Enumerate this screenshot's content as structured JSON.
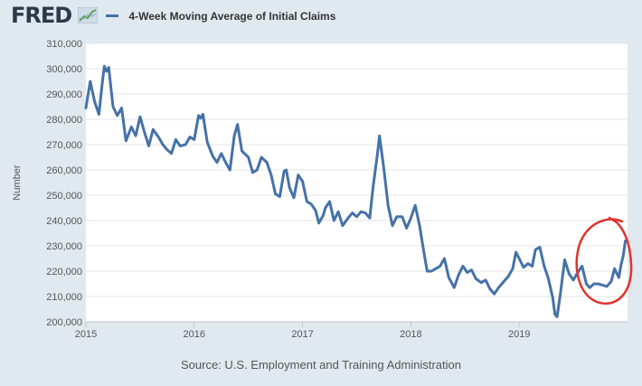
{
  "app": {
    "brand": "FRED",
    "logo_icon": "trend-graph-icon"
  },
  "legend": {
    "label": "4-Week Moving Average of Initial Claims",
    "color": "#4572a7"
  },
  "source": "Source: U.S. Employment and Training Administration",
  "annotation": {
    "type": "hand-drawn circle",
    "color": "#e0342c"
  },
  "chart_data": {
    "type": "line",
    "title": "",
    "xlabel": "",
    "ylabel": "Number",
    "xlim": [
      2015.0,
      2020.0
    ],
    "ylim": [
      200000,
      310000
    ],
    "grid": true,
    "legend_position": "top",
    "x_ticks": [
      {
        "value": 2015,
        "label": "2015"
      },
      {
        "value": 2016,
        "label": "2016"
      },
      {
        "value": 2017,
        "label": "2017"
      },
      {
        "value": 2018,
        "label": "2018"
      },
      {
        "value": 2019,
        "label": "2019"
      }
    ],
    "y_ticks": [
      {
        "value": 200000,
        "label": "200,000"
      },
      {
        "value": 210000,
        "label": "210,000"
      },
      {
        "value": 220000,
        "label": "220,000"
      },
      {
        "value": 230000,
        "label": "230,000"
      },
      {
        "value": 240000,
        "label": "240,000"
      },
      {
        "value": 250000,
        "label": "250,000"
      },
      {
        "value": 260000,
        "label": "260,000"
      },
      {
        "value": 270000,
        "label": "270,000"
      },
      {
        "value": 280000,
        "label": "280,000"
      },
      {
        "value": 290000,
        "label": "290,000"
      },
      {
        "value": 300000,
        "label": "300,000"
      },
      {
        "value": 310000,
        "label": "310,000"
      }
    ],
    "series": [
      {
        "name": "4-Week Moving Average of Initial Claims",
        "color": "#4572a7",
        "points": [
          [
            2015.0,
            284500
          ],
          [
            2015.04,
            295000
          ],
          [
            2015.08,
            287000
          ],
          [
            2015.12,
            282000
          ],
          [
            2015.15,
            294000
          ],
          [
            2015.17,
            301000
          ],
          [
            2015.19,
            299000
          ],
          [
            2015.21,
            300500
          ],
          [
            2015.25,
            285000
          ],
          [
            2015.29,
            281500
          ],
          [
            2015.33,
            284500
          ],
          [
            2015.37,
            271500
          ],
          [
            2015.42,
            277000
          ],
          [
            2015.46,
            273500
          ],
          [
            2015.5,
            281000
          ],
          [
            2015.54,
            275000
          ],
          [
            2015.58,
            269500
          ],
          [
            2015.62,
            276000
          ],
          [
            2015.67,
            273000
          ],
          [
            2015.71,
            270000
          ],
          [
            2015.75,
            268000
          ],
          [
            2015.79,
            266500
          ],
          [
            2015.83,
            272000
          ],
          [
            2015.87,
            269500
          ],
          [
            2015.92,
            270000
          ],
          [
            2015.96,
            273000
          ],
          [
            2016.0,
            272000
          ],
          [
            2016.04,
            281500
          ],
          [
            2016.06,
            280500
          ],
          [
            2016.08,
            282000
          ],
          [
            2016.12,
            271000
          ],
          [
            2016.17,
            265500
          ],
          [
            2016.21,
            263000
          ],
          [
            2016.25,
            266500
          ],
          [
            2016.29,
            263000
          ],
          [
            2016.33,
            260000
          ],
          [
            2016.37,
            273500
          ],
          [
            2016.4,
            278000
          ],
          [
            2016.44,
            267500
          ],
          [
            2016.5,
            265000
          ],
          [
            2016.54,
            259000
          ],
          [
            2016.58,
            260000
          ],
          [
            2016.62,
            265000
          ],
          [
            2016.67,
            263000
          ],
          [
            2016.71,
            258000
          ],
          [
            2016.75,
            250500
          ],
          [
            2016.79,
            249500
          ],
          [
            2016.83,
            259500
          ],
          [
            2016.85,
            260000
          ],
          [
            2016.88,
            253000
          ],
          [
            2016.92,
            249000
          ],
          [
            2016.96,
            258000
          ],
          [
            2017.0,
            255500
          ],
          [
            2017.04,
            247500
          ],
          [
            2017.08,
            246500
          ],
          [
            2017.12,
            244000
          ],
          [
            2017.15,
            239000
          ],
          [
            2017.19,
            242000
          ],
          [
            2017.21,
            245000
          ],
          [
            2017.25,
            247500
          ],
          [
            2017.29,
            240000
          ],
          [
            2017.33,
            243500
          ],
          [
            2017.37,
            238000
          ],
          [
            2017.42,
            241000
          ],
          [
            2017.46,
            243000
          ],
          [
            2017.5,
            241500
          ],
          [
            2017.54,
            243500
          ],
          [
            2017.58,
            243000
          ],
          [
            2017.62,
            241000
          ],
          [
            2017.65,
            253000
          ],
          [
            2017.69,
            266000
          ],
          [
            2017.71,
            273500
          ],
          [
            2017.75,
            260500
          ],
          [
            2017.79,
            246000
          ],
          [
            2017.83,
            238000
          ],
          [
            2017.87,
            241500
          ],
          [
            2017.92,
            241500
          ],
          [
            2017.96,
            237000
          ],
          [
            2018.0,
            241000
          ],
          [
            2018.04,
            246000
          ],
          [
            2018.08,
            238000
          ],
          [
            2018.12,
            227500
          ],
          [
            2018.15,
            220000
          ],
          [
            2018.19,
            220000
          ],
          [
            2018.23,
            221000
          ],
          [
            2018.27,
            222000
          ],
          [
            2018.31,
            225000
          ],
          [
            2018.35,
            217500
          ],
          [
            2018.4,
            213500
          ],
          [
            2018.44,
            218500
          ],
          [
            2018.48,
            222000
          ],
          [
            2018.52,
            219500
          ],
          [
            2018.56,
            220500
          ],
          [
            2018.6,
            217000
          ],
          [
            2018.65,
            215500
          ],
          [
            2018.69,
            216500
          ],
          [
            2018.73,
            213000
          ],
          [
            2018.77,
            211000
          ],
          [
            2018.81,
            213500
          ],
          [
            2018.85,
            215500
          ],
          [
            2018.9,
            218000
          ],
          [
            2018.94,
            221000
          ],
          [
            2018.97,
            227500
          ],
          [
            2019.0,
            225000
          ],
          [
            2019.04,
            221500
          ],
          [
            2019.08,
            223000
          ],
          [
            2019.12,
            222000
          ],
          [
            2019.15,
            228500
          ],
          [
            2019.19,
            229500
          ],
          [
            2019.23,
            222000
          ],
          [
            2019.27,
            217000
          ],
          [
            2019.31,
            209500
          ],
          [
            2019.33,
            203000
          ],
          [
            2019.35,
            202000
          ],
          [
            2019.38,
            211000
          ],
          [
            2019.42,
            224500
          ],
          [
            2019.46,
            219000
          ],
          [
            2019.5,
            216500
          ],
          [
            2019.54,
            219500
          ],
          [
            2019.58,
            222000
          ],
          [
            2019.62,
            215000
          ],
          [
            2019.65,
            213500
          ],
          [
            2019.69,
            215000
          ],
          [
            2019.73,
            215000
          ],
          [
            2019.77,
            214500
          ],
          [
            2019.81,
            214000
          ],
          [
            2019.85,
            216000
          ],
          [
            2019.88,
            221000
          ],
          [
            2019.92,
            217500
          ],
          [
            2019.94,
            222500
          ],
          [
            2019.96,
            226000
          ],
          [
            2019.98,
            232000
          ]
        ]
      }
    ]
  }
}
